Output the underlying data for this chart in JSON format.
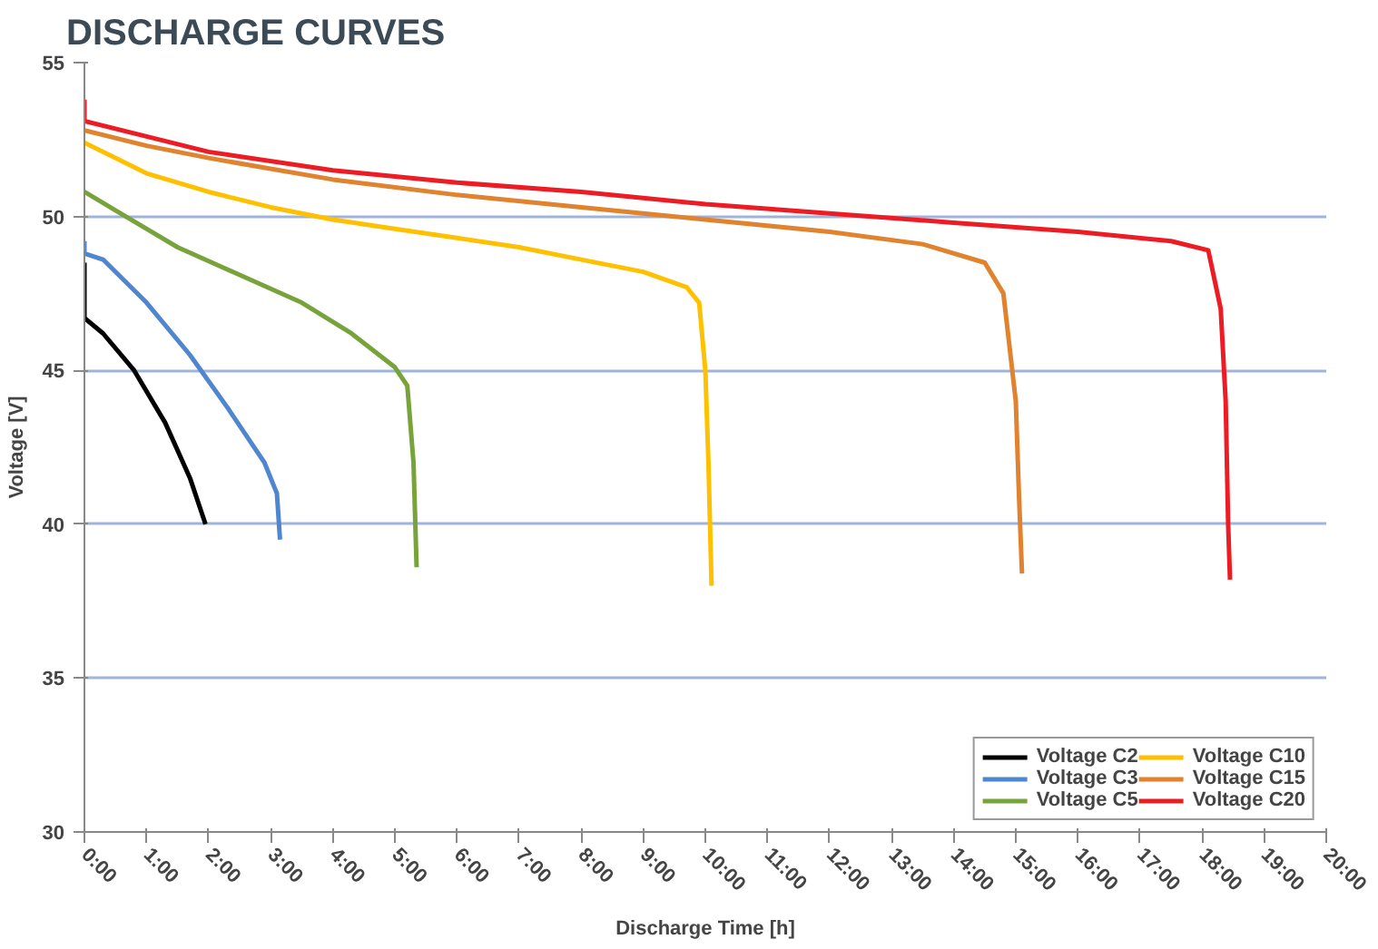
{
  "chart_data": {
    "type": "line",
    "title": "DISCHARGE CURVES",
    "xlabel": "Discharge Time [h]",
    "ylabel": "Voltage [V]",
    "xlim": [
      0,
      20
    ],
    "ylim": [
      30,
      55
    ],
    "xticks": [
      {
        "value": 0,
        "label": "0:00"
      },
      {
        "value": 1,
        "label": "1:00"
      },
      {
        "value": 2,
        "label": "2:00"
      },
      {
        "value": 3,
        "label": "3:00"
      },
      {
        "value": 4,
        "label": "4:00"
      },
      {
        "value": 5,
        "label": "5:00"
      },
      {
        "value": 6,
        "label": "6:00"
      },
      {
        "value": 7,
        "label": "7:00"
      },
      {
        "value": 8,
        "label": "8:00"
      },
      {
        "value": 9,
        "label": "9:00"
      },
      {
        "value": 10,
        "label": "10:00"
      },
      {
        "value": 11,
        "label": "11:00"
      },
      {
        "value": 12,
        "label": "12:00"
      },
      {
        "value": 13,
        "label": "13:00"
      },
      {
        "value": 14,
        "label": "14:00"
      },
      {
        "value": 15,
        "label": "15:00"
      },
      {
        "value": 16,
        "label": "16:00"
      },
      {
        "value": 17,
        "label": "17:00"
      },
      {
        "value": 18,
        "label": "18:00"
      },
      {
        "value": 19,
        "label": "19:00"
      },
      {
        "value": 20,
        "label": "20:00"
      }
    ],
    "yticks": [
      30,
      35,
      40,
      45,
      50,
      55
    ],
    "grid": "y",
    "legend": "bottom right",
    "marker": "none",
    "line_style": "solid",
    "series": [
      {
        "name": "Voltage C2",
        "color": "#000000",
        "x": [
          0,
          0,
          0.3,
          0.8,
          1.3,
          1.7,
          1.95
        ],
        "values": [
          48.5,
          46.7,
          46.2,
          45,
          43.3,
          41.5,
          40.0
        ]
      },
      {
        "name": "Voltage C3",
        "color": "#4f86d0",
        "x": [
          0,
          0,
          0.3,
          1,
          1.7,
          2.3,
          2.9,
          3.1,
          3.15
        ],
        "values": [
          49.2,
          48.8,
          48.6,
          47.2,
          45.5,
          43.8,
          42,
          41,
          39.5
        ]
      },
      {
        "name": "Voltage C5",
        "color": "#77a33a",
        "x": [
          0,
          0.5,
          1.5,
          2.5,
          3.5,
          4.3,
          5,
          5.2,
          5.3,
          5.35
        ],
        "values": [
          50.8,
          50.2,
          49,
          48.1,
          47.2,
          46.2,
          45.1,
          44.5,
          42,
          38.6
        ]
      },
      {
        "name": "Voltage C10",
        "color": "#ffc000",
        "x": [
          0,
          1,
          2,
          3,
          4,
          5,
          6,
          7,
          8,
          9,
          9.7,
          9.9,
          10,
          10.05,
          10.1
        ],
        "values": [
          52.4,
          51.4,
          50.8,
          50.3,
          49.9,
          49.6,
          49.3,
          49,
          48.6,
          48.2,
          47.7,
          47.2,
          45,
          42,
          38
        ]
      },
      {
        "name": "Voltage C15",
        "color": "#e0822e",
        "x": [
          0,
          1,
          2,
          4,
          6,
          8,
          10,
          12,
          13.5,
          14.5,
          14.8,
          15,
          15.05,
          15.1
        ],
        "values": [
          52.8,
          52.3,
          51.9,
          51.2,
          50.7,
          50.3,
          49.9,
          49.5,
          49.1,
          48.5,
          47.5,
          44,
          41,
          38.4
        ]
      },
      {
        "name": "Voltage C20",
        "color": "#ed1c24",
        "x": [
          0,
          0,
          1,
          2,
          4,
          6,
          8,
          10,
          12,
          14,
          16,
          17.5,
          18.1,
          18.3,
          18.38,
          18.42,
          18.45
        ],
        "values": [
          53.8,
          53.1,
          52.6,
          52.1,
          51.5,
          51.1,
          50.8,
          50.4,
          50.1,
          49.8,
          49.5,
          49.2,
          48.9,
          47,
          44,
          40,
          38.2
        ]
      }
    ]
  }
}
